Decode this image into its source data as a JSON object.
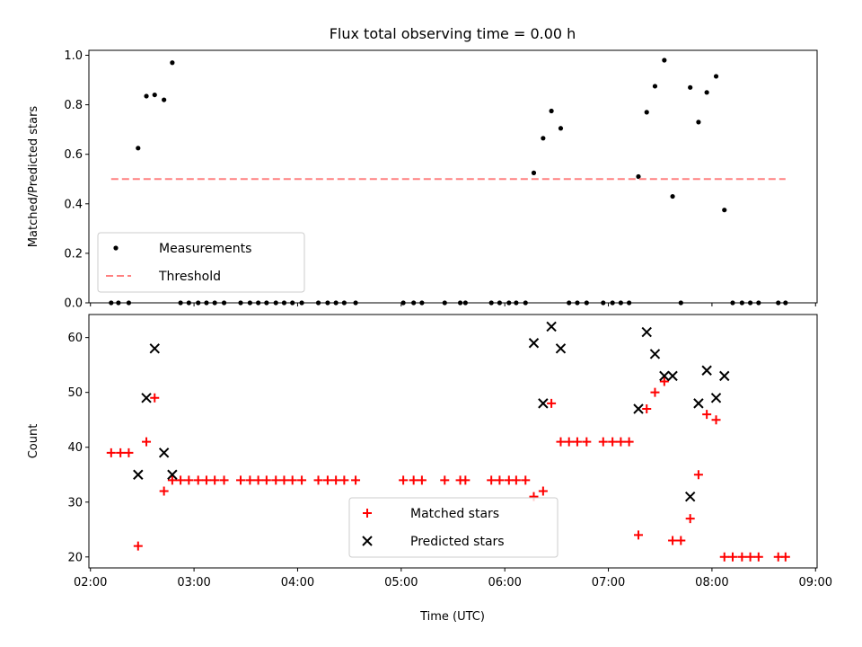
{
  "figure": {
    "title": "Flux total observing time = 0.00 h",
    "xlabel": "Time (UTC)",
    "xticks": [
      "02:00",
      "03:00",
      "04:00",
      "05:00",
      "06:00",
      "07:00",
      "08:00",
      "09:00"
    ]
  },
  "chart_data": [
    {
      "type": "scatter",
      "title": "Flux total observing time = 0.00 h",
      "xlabel": "",
      "ylabel": "Matched/Predicted stars",
      "x_unit": "hours UTC",
      "xlim": [
        1.985,
        9.015
      ],
      "ylim": [
        0.0,
        1.02
      ],
      "yticks": [
        "0.0",
        "0.2",
        "0.4",
        "0.6",
        "0.8",
        "1.0"
      ],
      "legend_position": "lower-left",
      "series": [
        {
          "name": "Measurements",
          "marker": "dot",
          "color": "#000000",
          "points": [
            [
              2.2,
              0
            ],
            [
              2.27,
              0
            ],
            [
              2.37,
              0
            ],
            [
              2.46,
              0.625
            ],
            [
              2.54,
              0.835
            ],
            [
              2.62,
              0.84
            ],
            [
              2.71,
              0.82
            ],
            [
              2.79,
              0.97
            ],
            [
              2.87,
              0
            ],
            [
              2.95,
              0
            ],
            [
              3.04,
              0
            ],
            [
              3.12,
              0
            ],
            [
              3.2,
              0
            ],
            [
              3.29,
              0
            ],
            [
              3.45,
              0
            ],
            [
              3.54,
              0
            ],
            [
              3.62,
              0
            ],
            [
              3.7,
              0
            ],
            [
              3.79,
              0
            ],
            [
              3.87,
              0
            ],
            [
              3.95,
              0
            ],
            [
              4.04,
              0
            ],
            [
              4.2,
              0
            ],
            [
              4.29,
              0
            ],
            [
              4.37,
              0
            ],
            [
              4.45,
              0
            ],
            [
              4.56,
              0
            ],
            [
              5.02,
              0
            ],
            [
              5.12,
              0
            ],
            [
              5.2,
              0
            ],
            [
              5.42,
              0
            ],
            [
              5.57,
              0
            ],
            [
              5.62,
              0
            ],
            [
              5.87,
              0
            ],
            [
              5.95,
              0
            ],
            [
              6.04,
              0
            ],
            [
              6.11,
              0
            ],
            [
              6.2,
              0
            ],
            [
              6.28,
              0.525
            ],
            [
              6.37,
              0.665
            ],
            [
              6.45,
              0.775
            ],
            [
              6.54,
              0.705
            ],
            [
              6.62,
              0
            ],
            [
              6.7,
              0
            ],
            [
              6.79,
              0
            ],
            [
              6.95,
              0
            ],
            [
              7.04,
              0
            ],
            [
              7.12,
              0
            ],
            [
              7.2,
              0
            ],
            [
              7.29,
              0.51
            ],
            [
              7.37,
              0.77
            ],
            [
              7.45,
              0.875
            ],
            [
              7.54,
              0.98
            ],
            [
              7.62,
              0.43
            ],
            [
              7.7,
              0
            ],
            [
              7.79,
              0.87
            ],
            [
              7.87,
              0.73
            ],
            [
              7.95,
              0.85
            ],
            [
              8.04,
              0.915
            ],
            [
              8.12,
              0.375
            ],
            [
              8.2,
              0
            ],
            [
              8.29,
              0
            ],
            [
              8.37,
              0
            ],
            [
              8.45,
              0
            ],
            [
              8.64,
              0
            ],
            [
              8.71,
              0
            ]
          ]
        },
        {
          "name": "Threshold",
          "style": "dashed-line",
          "color": "#ff8080",
          "x": [
            2.2,
            8.71
          ],
          "values": [
            0.5,
            0.5
          ]
        }
      ]
    },
    {
      "type": "scatter",
      "title": "",
      "xlabel": "Time (UTC)",
      "ylabel": "Count",
      "x_unit": "hours UTC",
      "xlim": [
        1.985,
        9.015
      ],
      "ylim": [
        18,
        64.2
      ],
      "yticks": [
        "20",
        "30",
        "40",
        "50",
        "60"
      ],
      "legend_position": "lower-center",
      "series": [
        {
          "name": "Matched stars",
          "marker": "plus",
          "color": "#ff0000",
          "points": [
            [
              2.2,
              39
            ],
            [
              2.29,
              39
            ],
            [
              2.37,
              39
            ],
            [
              2.46,
              22
            ],
            [
              2.54,
              41
            ],
            [
              2.62,
              49
            ],
            [
              2.71,
              32
            ],
            [
              2.79,
              34
            ],
            [
              2.87,
              34
            ],
            [
              2.95,
              34
            ],
            [
              3.04,
              34
            ],
            [
              3.12,
              34
            ],
            [
              3.2,
              34
            ],
            [
              3.29,
              34
            ],
            [
              3.45,
              34
            ],
            [
              3.54,
              34
            ],
            [
              3.62,
              34
            ],
            [
              3.7,
              34
            ],
            [
              3.79,
              34
            ],
            [
              3.87,
              34
            ],
            [
              3.95,
              34
            ],
            [
              4.04,
              34
            ],
            [
              4.2,
              34
            ],
            [
              4.29,
              34
            ],
            [
              4.37,
              34
            ],
            [
              4.45,
              34
            ],
            [
              4.56,
              34
            ],
            [
              5.02,
              34
            ],
            [
              5.12,
              34
            ],
            [
              5.2,
              34
            ],
            [
              5.42,
              34
            ],
            [
              5.57,
              34
            ],
            [
              5.62,
              34
            ],
            [
              5.87,
              34
            ],
            [
              5.95,
              34
            ],
            [
              6.04,
              34
            ],
            [
              6.11,
              34
            ],
            [
              6.2,
              34
            ],
            [
              6.28,
              31
            ],
            [
              6.37,
              32
            ],
            [
              6.45,
              48
            ],
            [
              6.54,
              41
            ],
            [
              6.62,
              41
            ],
            [
              6.7,
              41
            ],
            [
              6.79,
              41
            ],
            [
              6.95,
              41
            ],
            [
              7.04,
              41
            ],
            [
              7.12,
              41
            ],
            [
              7.2,
              41
            ],
            [
              7.29,
              24
            ],
            [
              7.37,
              47
            ],
            [
              7.45,
              50
            ],
            [
              7.54,
              52
            ],
            [
              7.62,
              23
            ],
            [
              7.7,
              23
            ],
            [
              7.79,
              27
            ],
            [
              7.87,
              35
            ],
            [
              7.95,
              46
            ],
            [
              8.04,
              45
            ],
            [
              8.12,
              20
            ],
            [
              8.2,
              20
            ],
            [
              8.29,
              20
            ],
            [
              8.37,
              20
            ],
            [
              8.45,
              20
            ],
            [
              8.64,
              20
            ],
            [
              8.71,
              20
            ]
          ]
        },
        {
          "name": "Predicted stars",
          "marker": "x",
          "color": "#000000",
          "points": [
            [
              2.46,
              35
            ],
            [
              2.54,
              49
            ],
            [
              2.62,
              58
            ],
            [
              2.71,
              39
            ],
            [
              2.79,
              35
            ],
            [
              6.28,
              59
            ],
            [
              6.37,
              48
            ],
            [
              6.45,
              62
            ],
            [
              6.54,
              58
            ],
            [
              7.29,
              47
            ],
            [
              7.37,
              61
            ],
            [
              7.45,
              57
            ],
            [
              7.54,
              53
            ],
            [
              7.62,
              53
            ],
            [
              7.79,
              31
            ],
            [
              7.87,
              48
            ],
            [
              7.95,
              54
            ],
            [
              8.04,
              49
            ],
            [
              8.12,
              53
            ]
          ]
        }
      ]
    }
  ]
}
